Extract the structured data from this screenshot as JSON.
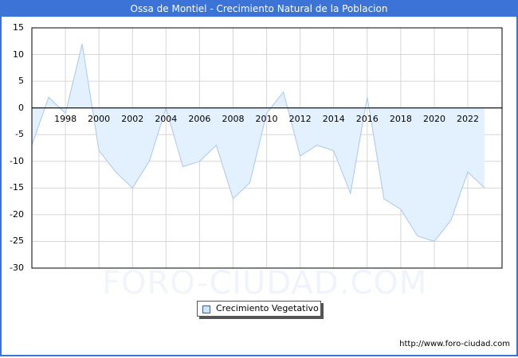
{
  "header": {
    "title": "Ossa de Montiel - Crecimiento Natural de la Poblacion"
  },
  "watermark": {
    "part1": "FORO-",
    "part2": "CIUDAD.COM"
  },
  "legend": {
    "label": "Crecimiento Vegetativo",
    "swatch_color": "#cfe5fb"
  },
  "footer": {
    "url": "http://www.foro-ciudad.com"
  },
  "colors": {
    "title_bg": "#3b74d6",
    "area_fill": "#e3f0fd",
    "line": "#a9c8ef",
    "grid": "#d6d6d6"
  },
  "axis": {
    "y_ticks": [
      "15",
      "10",
      "5",
      "0",
      "-5",
      "-10",
      "-15",
      "-20",
      "-25",
      "-30"
    ],
    "x_ticks": [
      "1998",
      "2000",
      "2002",
      "2004",
      "2006",
      "2008",
      "2010",
      "2012",
      "2014",
      "2016",
      "2018",
      "2020",
      "2022"
    ]
  },
  "chart_data": {
    "type": "area",
    "title": "Ossa de Montiel - Crecimiento Natural de la Poblacion",
    "xlabel": "",
    "ylabel": "",
    "ylim": [
      -30,
      15
    ],
    "grid": true,
    "legend_position": "bottom",
    "x": [
      1996,
      1997,
      1998,
      1999,
      2000,
      2001,
      2002,
      2003,
      2004,
      2005,
      2006,
      2007,
      2008,
      2009,
      2010,
      2011,
      2012,
      2013,
      2014,
      2015,
      2016,
      2017,
      2018,
      2019,
      2020,
      2021,
      2022,
      2023
    ],
    "series": [
      {
        "name": "Crecimiento Vegetativo",
        "values": [
          -7,
          2,
          -1,
          12,
          -8,
          -12,
          -15,
          -10,
          0,
          -11,
          -10,
          -7,
          -17,
          -14,
          -1,
          3,
          -9,
          -7,
          -8,
          -16,
          2,
          -17,
          -19,
          -24,
          -25,
          -21,
          -12,
          -15
        ]
      }
    ]
  }
}
